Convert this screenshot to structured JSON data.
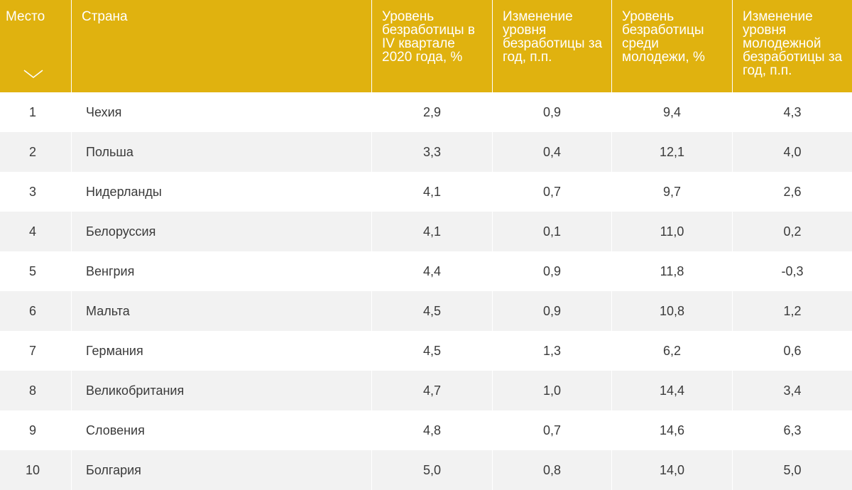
{
  "headers": [
    "Место",
    "Страна",
    "Уровень безработицы в IV квартале 2020 года, %",
    "Изменение уровня безработицы за год, п.п.",
    "Уровень безработицы среди молодежи, %",
    "Изменение уровня молодежной безработицы за год, п.п."
  ],
  "sort_icon": "chevron-down-icon",
  "colors": {
    "header_bg": "#e0b20f",
    "header_text": "#ffffff",
    "row_alt": "#f2f2f2",
    "text": "#3a3a3a"
  },
  "rows": [
    [
      "1",
      "Чехия",
      "2,9",
      "0,9",
      "9,4",
      "4,3"
    ],
    [
      "2",
      "Польша",
      "3,3",
      "0,4",
      "12,1",
      "4,0"
    ],
    [
      "3",
      "Нидерланды",
      "4,1",
      "0,7",
      "9,7",
      "2,6"
    ],
    [
      "4",
      "Белоруссия",
      "4,1",
      "0,1",
      "11,0",
      "0,2"
    ],
    [
      "5",
      "Венгрия",
      "4,4",
      "0,9",
      "11,8",
      "-0,3"
    ],
    [
      "6",
      "Мальта",
      "4,5",
      "0,9",
      "10,8",
      "1,2"
    ],
    [
      "7",
      "Германия",
      "4,5",
      "1,3",
      "6,2",
      "0,6"
    ],
    [
      "8",
      "Великобритания",
      "4,7",
      "1,0",
      "14,4",
      "3,4"
    ],
    [
      "9",
      "Словения",
      "4,8",
      "0,7",
      "14,6",
      "6,3"
    ],
    [
      "10",
      "Болгария",
      "5,0",
      "0,8",
      "14,0",
      "5,0"
    ]
  ]
}
